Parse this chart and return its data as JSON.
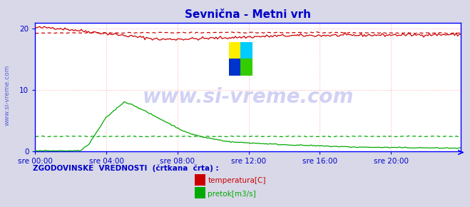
{
  "title": "Sevnična - Metni vrh",
  "title_color": "#0000cc",
  "background_color": "#d8d8e8",
  "plot_bg_color": "#ffffff",
  "tick_color": "#0000cc",
  "ylabel_ticks": [
    0,
    10,
    20
  ],
  "ylim": [
    0,
    21
  ],
  "xlim": [
    0,
    287
  ],
  "xtick_labels": [
    "sre 00:00",
    "sre 04:00",
    "sre 08:00",
    "sre 12:00",
    "sre 16:00",
    "sre 20:00"
  ],
  "xtick_positions": [
    0,
    48,
    96,
    144,
    192,
    240
  ],
  "grid_color": "#ffaaaa",
  "grid_linestyle": ":",
  "border_color": "#0000ff",
  "watermark_text": "www.si-vreme.com",
  "watermark_color": "#0000cc",
  "watermark_alpha": 0.18,
  "legend_text": "ZGODOVINSKE  VREDNOSTI  (črtkana  črta) :",
  "legend_color": "#0000cc",
  "temp_color": "#cc0000",
  "flow_color": "#00aa00",
  "temp_label": "temperatura[C]",
  "flow_label": "pretok[m3/s]",
  "side_label": "www.si-vreme.com",
  "logo_yellow": "#ffee00",
  "logo_cyan": "#00ccff",
  "logo_blue": "#0033cc",
  "logo_green": "#33cc00"
}
